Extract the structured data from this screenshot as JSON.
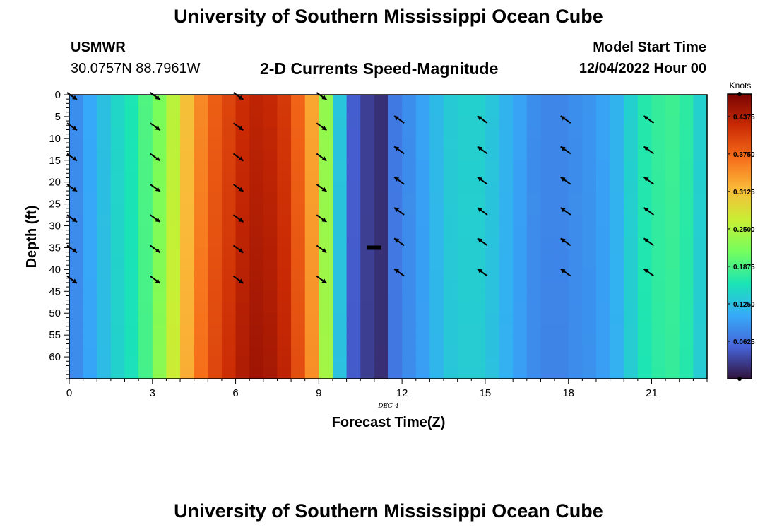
{
  "title": "University of Southern Mississippi Ocean Cube",
  "title_repeat": "University of Southern Mississippi Ocean Cube",
  "station": {
    "name": "USMWR",
    "coordinates": "30.0757N  88.7961W"
  },
  "product_title": "2-D Currents Speed-Magnitude",
  "model_start": {
    "label": "Model Start Time",
    "value": "12/04/2022 Hour 00"
  },
  "colors": {
    "arrow": "#000000",
    "palette": [
      "#30123b",
      "#4662d7",
      "#36aaf9",
      "#1ae4b6",
      "#72fe5e",
      "#c8ef34",
      "#faba39",
      "#f66b19",
      "#ca2a04",
      "#7a0403"
    ]
  },
  "chart_data": {
    "type": "heatmap",
    "title": "2-D Currents Speed-Magnitude",
    "xlabel": "Forecast Time(Z)",
    "ylabel": "Depth (ft)",
    "date_label": "DEC 4",
    "x_range": [
      0,
      23
    ],
    "y_range": [
      0,
      65
    ],
    "x_ticks": [
      0,
      3,
      6,
      9,
      12,
      15,
      18,
      21
    ],
    "y_ticks": [
      0,
      5,
      10,
      15,
      20,
      25,
      30,
      35,
      40,
      45,
      50,
      55,
      60
    ],
    "time_hours": [
      0,
      0.5,
      1,
      1.5,
      2,
      2.5,
      3,
      3.5,
      4,
      4.5,
      5,
      5.5,
      6,
      6.5,
      7,
      7.5,
      8,
      8.5,
      9,
      9.5,
      10,
      10.5,
      11,
      11.5,
      12,
      12.5,
      13,
      13.5,
      14,
      14.5,
      15,
      15.5,
      16,
      16.5,
      17,
      17.5,
      18,
      18.5,
      19,
      19.5,
      20,
      20.5,
      21,
      21.5,
      22,
      22.5
    ],
    "speed_knots_profile": [
      0.085,
      0.105,
      0.125,
      0.145,
      0.16,
      0.19,
      0.215,
      0.255,
      0.31,
      0.35,
      0.38,
      0.4,
      0.42,
      0.43,
      0.425,
      0.41,
      0.375,
      0.33,
      0.23,
      0.13,
      0.05,
      0.03,
      0.02,
      0.07,
      0.085,
      0.1,
      0.12,
      0.135,
      0.14,
      0.14,
      0.13,
      0.115,
      0.1,
      0.085,
      0.08,
      0.08,
      0.085,
      0.09,
      0.1,
      0.115,
      0.14,
      0.165,
      0.175,
      0.18,
      0.17,
      0.14
    ],
    "colorbar": {
      "label": "Knots",
      "min": 0,
      "max": 0.475,
      "tick_values": [
        0.0625,
        0.125,
        0.1875,
        0.25,
        0.3125,
        0.375,
        0.4375
      ],
      "tick_labels": [
        "0.0625",
        "0.1250",
        "0.1875",
        "0.2500",
        "0.3125",
        "0.3750",
        "0.4375"
      ]
    },
    "vectors": [
      {
        "time": 0,
        "direction": "southeast",
        "depths": [
          0,
          7,
          14,
          21,
          28,
          35,
          42
        ]
      },
      {
        "time": 3,
        "direction": "southeast",
        "depths": [
          0,
          7,
          14,
          21,
          28,
          35,
          42
        ]
      },
      {
        "time": 6,
        "direction": "southeast",
        "depths": [
          0,
          7,
          14,
          21,
          28,
          35,
          42
        ]
      },
      {
        "time": 9,
        "direction": "southeast",
        "depths": [
          0,
          7,
          14,
          21,
          28,
          35,
          42
        ]
      },
      {
        "time": 12,
        "direction": "northwest",
        "depths": [
          6,
          13,
          20,
          27,
          34,
          41
        ]
      },
      {
        "time": 15,
        "direction": "northwest",
        "depths": [
          6,
          13,
          20,
          27,
          34,
          41
        ]
      },
      {
        "time": 18,
        "direction": "northwest",
        "depths": [
          6,
          13,
          20,
          27,
          34,
          41
        ]
      },
      {
        "time": 21,
        "direction": "northwest",
        "depths": [
          6,
          13,
          20,
          27,
          34,
          41
        ]
      }
    ],
    "surface_marker": {
      "time": 11,
      "depth": 35
    }
  }
}
